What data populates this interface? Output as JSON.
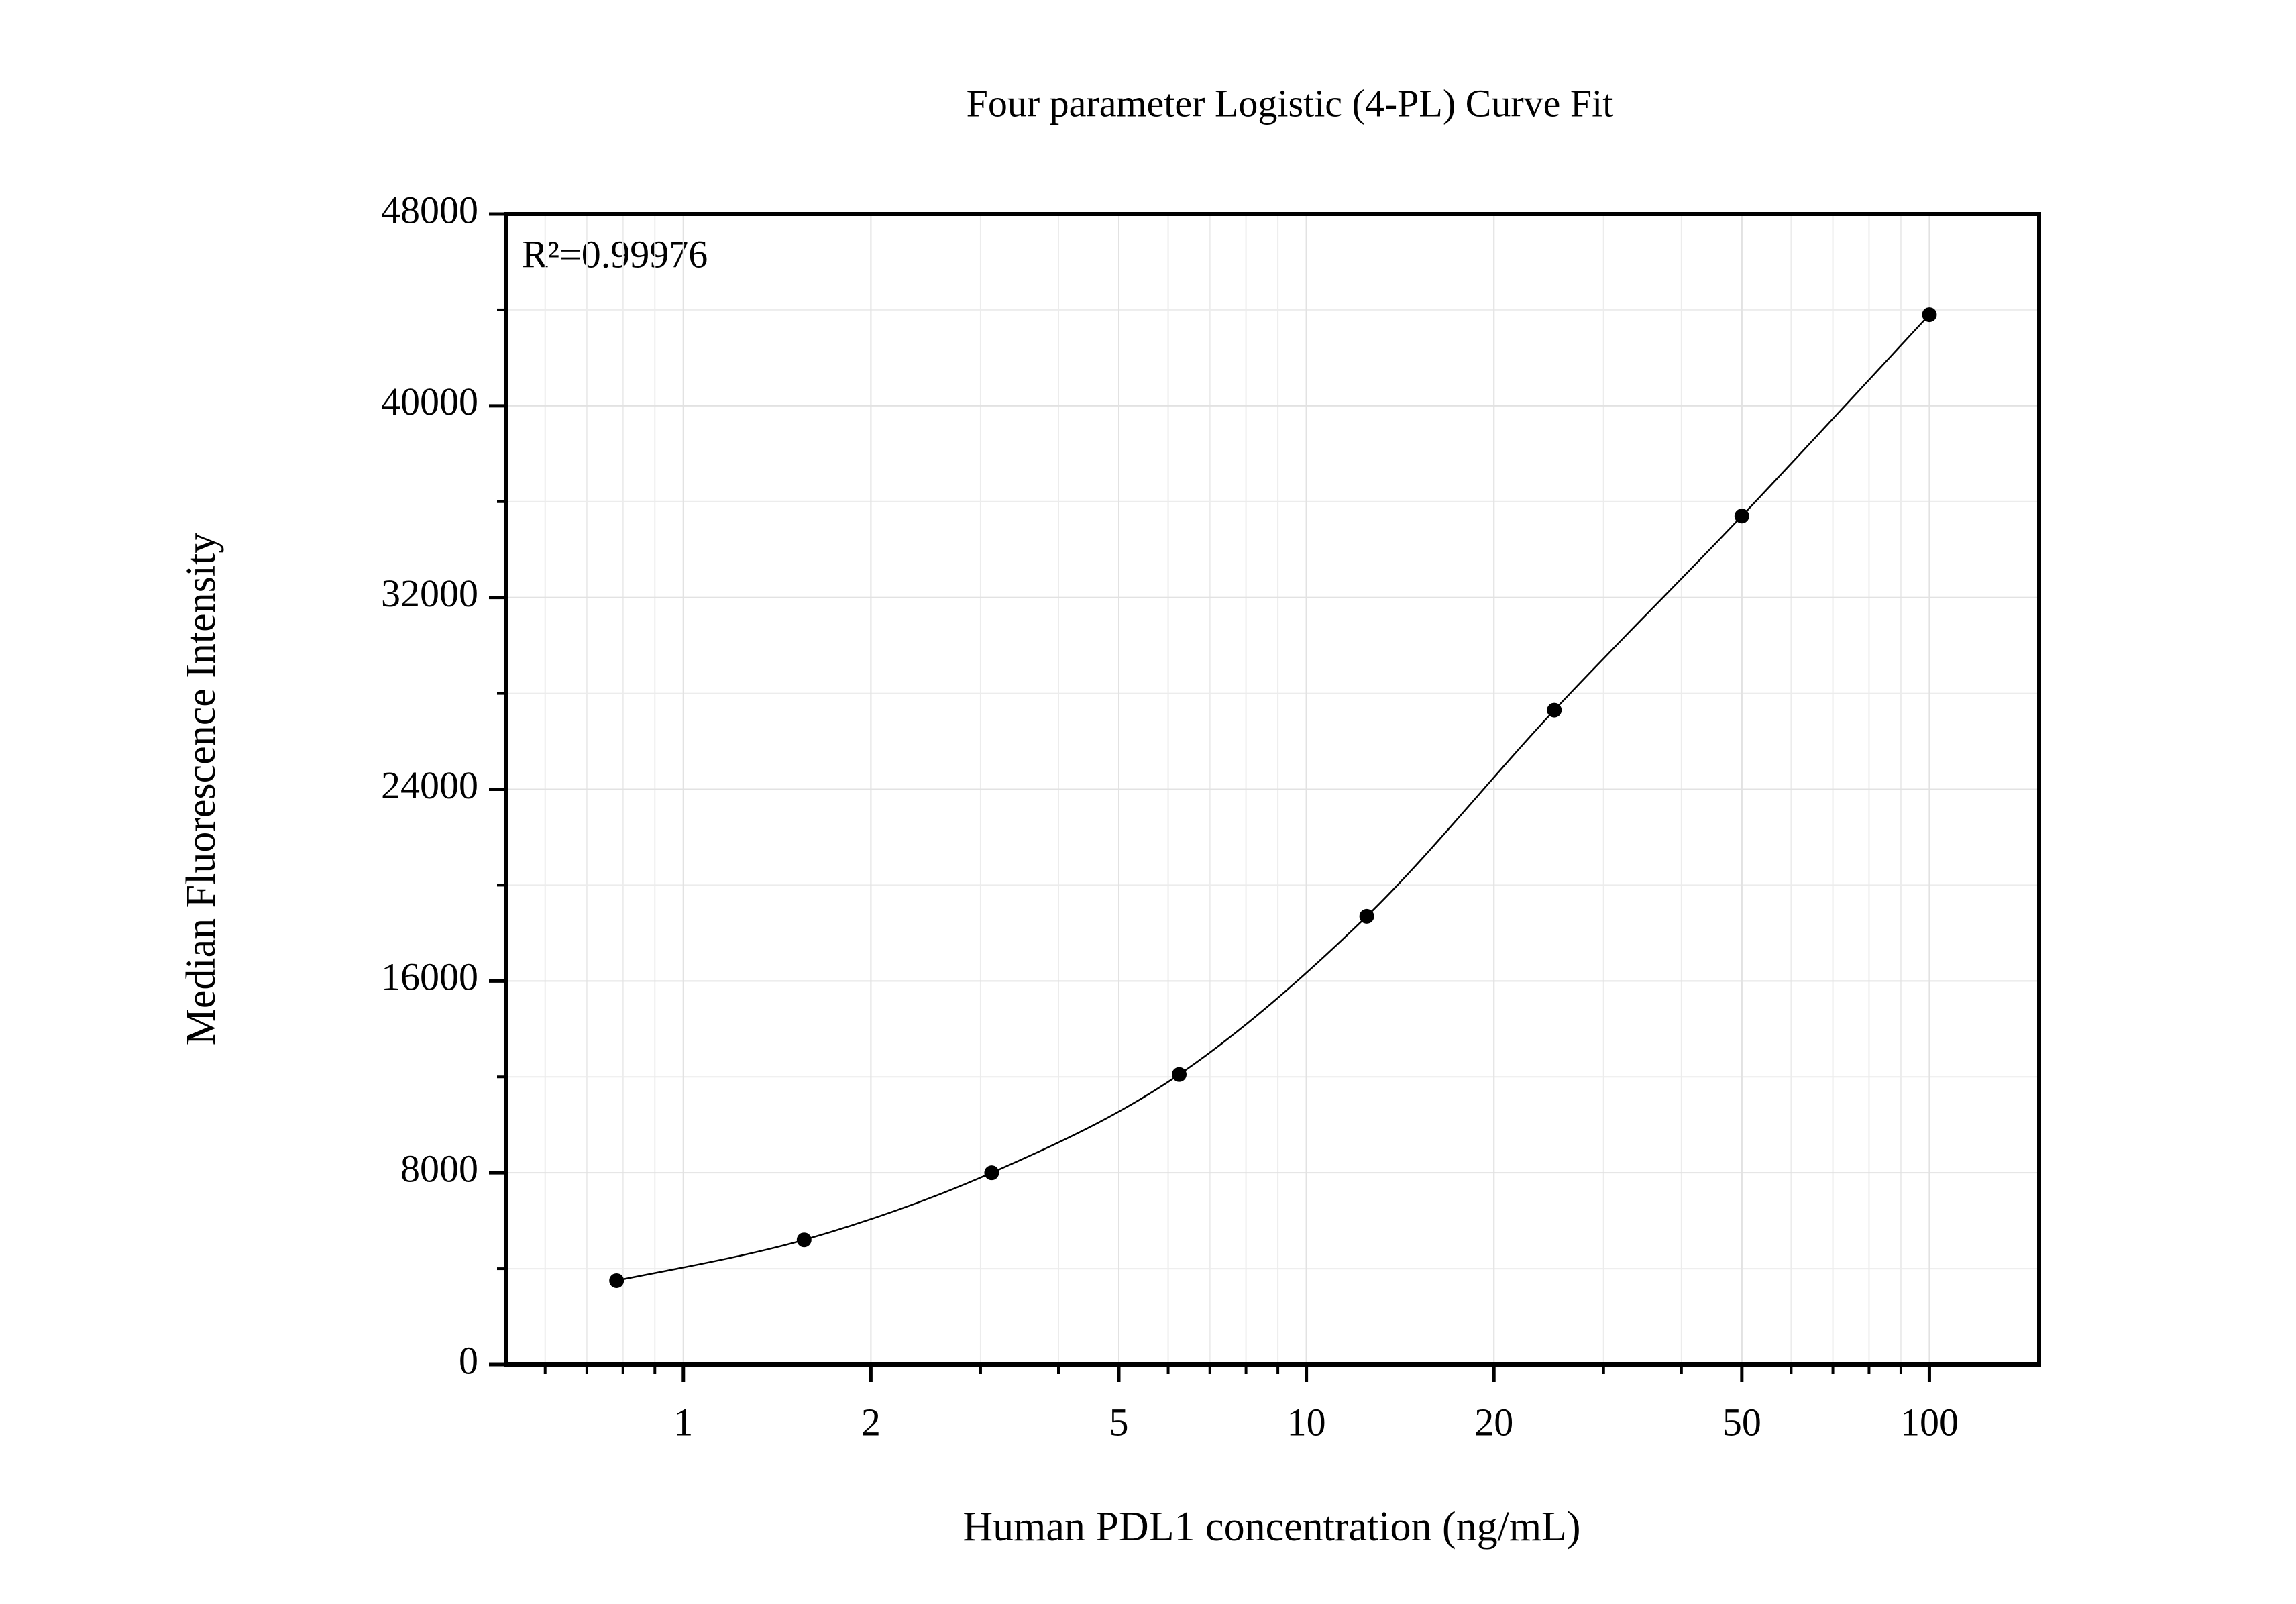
{
  "chart_data": {
    "type": "scatter",
    "title": "Four parameter Logistic (4-PL) Curve Fit",
    "x_label": "Human PDL1 concentration (ng/mL)",
    "y_label": "Median Fluorescence Intensity",
    "annotation": "R²=0.99976",
    "x_scale": "log",
    "grid": true,
    "series": [
      {
        "name": "Standard",
        "color": "#000000",
        "x": [
          0.78125,
          1.5625,
          3.125,
          6.25,
          12.5,
          25,
          50,
          100
        ],
        "values": [
          3500,
          5200,
          8000,
          12100,
          18700,
          27300,
          35400,
          43800
        ]
      }
    ],
    "xlim": [
      0.52,
      150
    ],
    "xticks": [
      1,
      2,
      5,
      10,
      20,
      50,
      100
    ],
    "ylim": [
      0,
      48000
    ],
    "yticks": [
      0,
      8000,
      16000,
      24000,
      32000,
      40000,
      48000
    ]
  }
}
